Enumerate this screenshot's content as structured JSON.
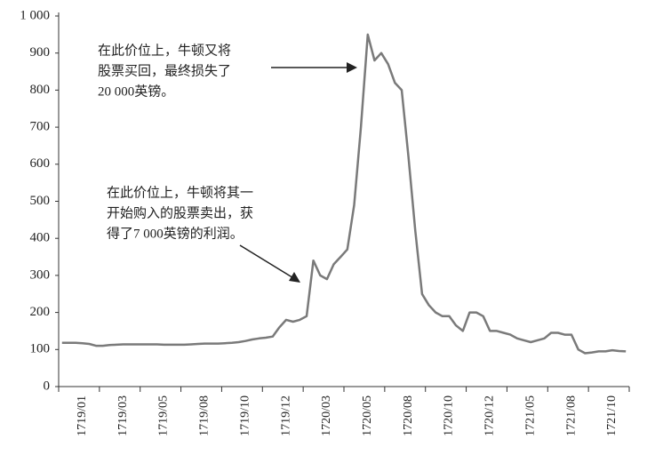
{
  "chart_data": {
    "type": "line",
    "annotations": [
      {
        "lines": [
          "在此价位上，牛顿又将",
          "股票买回，最终损失了",
          "20 000英镑。"
        ]
      },
      {
        "lines": [
          "在此价位上，牛顿将其一",
          "开始购入的股票卖出，获",
          "得了7 000英镑的利润。"
        ]
      }
    ],
    "categories": [
      null,
      null,
      null,
      "1719/01",
      null,
      null,
      null,
      null,
      null,
      "1719/03",
      null,
      null,
      null,
      null,
      null,
      "1719/05",
      null,
      null,
      null,
      null,
      null,
      "1719/08",
      null,
      null,
      null,
      null,
      null,
      "1719/10",
      null,
      null,
      null,
      null,
      null,
      "1719/12",
      null,
      null,
      null,
      null,
      null,
      "1720/03",
      null,
      null,
      null,
      null,
      null,
      "1720/05",
      null,
      null,
      null,
      null,
      null,
      "1720/08",
      null,
      null,
      null,
      null,
      null,
      "1720/10",
      null,
      null,
      null,
      null,
      null,
      "1720/12",
      null,
      null,
      null,
      null,
      null,
      "1721/05",
      null,
      null,
      null,
      null,
      null,
      "1721/08",
      null,
      null,
      null,
      null,
      null,
      "1721/10",
      null,
      null
    ],
    "values": [
      118,
      118,
      118,
      117,
      115,
      110,
      110,
      112,
      113,
      114,
      114,
      114,
      114,
      114,
      114,
      113,
      113,
      113,
      113,
      114,
      115,
      116,
      116,
      116,
      117,
      118,
      120,
      123,
      127,
      130,
      132,
      135,
      160,
      180,
      175,
      180,
      190,
      340,
      300,
      290,
      330,
      350,
      370,
      490,
      700,
      950,
      880,
      900,
      870,
      820,
      800,
      620,
      420,
      250,
      220,
      200,
      190,
      190,
      165,
      150,
      200,
      200,
      190,
      150,
      150,
      145,
      140,
      130,
      125,
      120,
      125,
      130,
      145,
      145,
      140,
      140,
      100,
      90,
      92,
      95,
      95,
      98,
      96,
      95
    ],
    "color": "#7a7a7a",
    "ylim": [
      0,
      1000
    ],
    "yticks": [
      0,
      100,
      200,
      300,
      400,
      500,
      600,
      700,
      800,
      900,
      {
        "value": 1000,
        "label": "1 000"
      }
    ]
  }
}
